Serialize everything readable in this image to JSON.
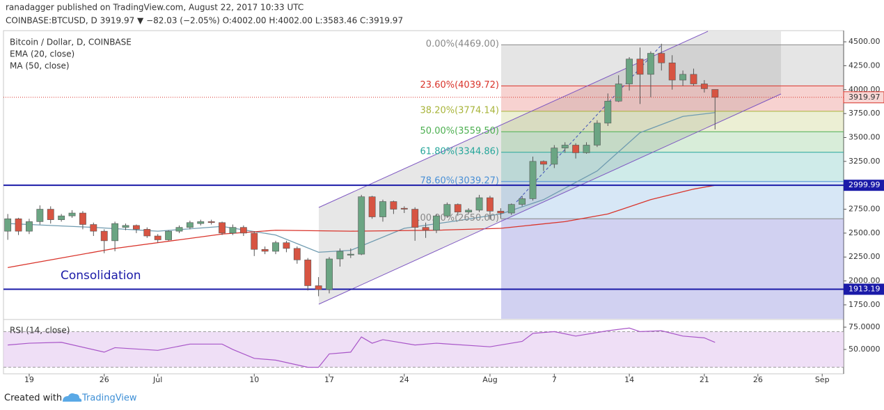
{
  "header": {
    "line1": "ranadagger published on TradingView.com, August 22, 2017 10:33 UTC",
    "line2": "COINBASE:BTCUSD, D 3919.97 ▼ −82.03 (−2.05%) O:4002.00 H:4002.00 L:3583.46 C:3919.97"
  },
  "footer": {
    "created": "Created with",
    "brand": "TradingView"
  },
  "chart_data": {
    "type": "candlestick",
    "title": "Bitcoin / Dollar, D, COINBASE",
    "annotation": "Consolidation",
    "up_color": "#6ba583",
    "down_color": "#d75442",
    "ylim": [
      1604,
      4617
    ],
    "yticks": [
      {
        "value": 1750,
        "label": "1750.00"
      },
      {
        "value": 2000,
        "label": "2000.00"
      },
      {
        "value": 2250,
        "label": "2250.00"
      },
      {
        "value": 2500,
        "label": "2500.00"
      },
      {
        "value": 2750,
        "label": "2750.00"
      },
      {
        "value": 3000,
        "label": "3000.00"
      },
      {
        "value": 3250,
        "label": "3250.00"
      },
      {
        "value": 3500,
        "label": "3500.00"
      },
      {
        "value": 3750,
        "label": "3750.00"
      },
      {
        "value": 4000,
        "label": "4000.00"
      },
      {
        "value": 4250,
        "label": "4250.00"
      },
      {
        "value": 4500,
        "label": "4500.00"
      }
    ],
    "xlim": [
      -0.4,
      78
    ],
    "xticks": [
      {
        "value": 2,
        "label": "19"
      },
      {
        "value": 9,
        "label": "26"
      },
      {
        "value": 14,
        "label": "Jul"
      },
      {
        "value": 23,
        "label": "10"
      },
      {
        "value": 30,
        "label": "17"
      },
      {
        "value": 37,
        "label": "24"
      },
      {
        "value": 45,
        "label": "Aug"
      },
      {
        "value": 51,
        "label": "7"
      },
      {
        "value": 58,
        "label": "14"
      },
      {
        "value": 65,
        "label": "21"
      },
      {
        "value": 70,
        "label": "26"
      },
      {
        "value": 76,
        "label": "Sep"
      }
    ],
    "candles": {
      "x": [
        0,
        1,
        2,
        3,
        4,
        5,
        6,
        7,
        8,
        9,
        10,
        11,
        12,
        13,
        14,
        15,
        16,
        17,
        18,
        19,
        20,
        21,
        22,
        23,
        24,
        25,
        26,
        27,
        28,
        29,
        30,
        31,
        32,
        33,
        34,
        35,
        36,
        37,
        38,
        39,
        40,
        41,
        42,
        43,
        44,
        45,
        46,
        47,
        48,
        49,
        50,
        51,
        52,
        53,
        54,
        55,
        56,
        57,
        58,
        59,
        60,
        61,
        62,
        63,
        64,
        65,
        66
      ],
      "open": [
        2520,
        2650,
        2520,
        2620,
        2750,
        2640,
        2680,
        2710,
        2590,
        2520,
        2420,
        2560,
        2580,
        2540,
        2470,
        2430,
        2520,
        2560,
        2600,
        2620,
        2610,
        2500,
        2560,
        2500,
        2330,
        2310,
        2400,
        2340,
        2220,
        1950,
        1910,
        2230,
        2270,
        2280,
        2880,
        2670,
        2830,
        2760,
        2750,
        2560,
        2530,
        2680,
        2800,
        2720,
        2740,
        2870,
        2730,
        2710,
        2800,
        2860,
        3250,
        3220,
        3390,
        3420,
        3340,
        3420,
        3650,
        3880,
        4060,
        4320,
        4160,
        4380,
        4280,
        4100,
        4160,
        4060,
        4002
      ],
      "high": [
        2700,
        2660,
        2650,
        2790,
        2780,
        2700,
        2740,
        2730,
        2610,
        2540,
        2620,
        2600,
        2590,
        2560,
        2490,
        2530,
        2580,
        2630,
        2640,
        2640,
        2620,
        2590,
        2580,
        2520,
        2360,
        2420,
        2420,
        2360,
        2240,
        2040,
        2250,
        2340,
        2340,
        2900,
        2890,
        2850,
        2840,
        2780,
        2770,
        2610,
        2700,
        2820,
        2810,
        2760,
        2900,
        2890,
        2760,
        2810,
        2890,
        3300,
        3260,
        3420,
        3450,
        3440,
        3450,
        3680,
        3960,
        4150,
        4340,
        4440,
        4400,
        4480,
        4360,
        4200,
        4220,
        4100,
        4002
      ],
      "low": [
        2430,
        2480,
        2490,
        2590,
        2600,
        2620,
        2660,
        2540,
        2470,
        2290,
        2310,
        2530,
        2500,
        2450,
        2400,
        2420,
        2500,
        2540,
        2580,
        2590,
        2480,
        2480,
        2470,
        2260,
        2280,
        2280,
        2300,
        2180,
        1900,
        1840,
        1870,
        2150,
        2240,
        2270,
        2650,
        2620,
        2700,
        2710,
        2420,
        2450,
        2500,
        2660,
        2680,
        2700,
        2720,
        2640,
        2650,
        2690,
        2780,
        2840,
        3150,
        3180,
        3340,
        3280,
        3330,
        3400,
        3620,
        3870,
        3990,
        3850,
        3920,
        4200,
        4000,
        4040,
        4040,
        3970,
        3583.46
      ],
      "close": [
        2650,
        2520,
        2620,
        2750,
        2640,
        2680,
        2710,
        2590,
        2520,
        2420,
        2600,
        2580,
        2540,
        2470,
        2430,
        2520,
        2560,
        2610,
        2620,
        2610,
        2500,
        2560,
        2500,
        2330,
        2310,
        2400,
        2340,
        2220,
        1950,
        1910,
        2230,
        2310,
        2280,
        2880,
        2670,
        2830,
        2750,
        2750,
        2560,
        2530,
        2680,
        2800,
        2720,
        2740,
        2870,
        2730,
        2710,
        2800,
        2860,
        3250,
        3220,
        3390,
        3420,
        3340,
        3420,
        3650,
        3880,
        4060,
        4320,
        4160,
        4380,
        4280,
        4100,
        4160,
        4060,
        4010,
        3919.97
      ]
    },
    "series": [
      {
        "name": "EMA (20, close)",
        "color": "#6f9bb0",
        "x": [
          0,
          8,
          14,
          20,
          25,
          29,
          32,
          37,
          42,
          46,
          50,
          55,
          59,
          63,
          66
        ],
        "values": [
          2600,
          2560,
          2520,
          2570,
          2480,
          2300,
          2320,
          2550,
          2630,
          2700,
          2850,
          3150,
          3550,
          3720,
          3760
        ]
      },
      {
        "name": "MA (50, close)",
        "color": "#d9342b",
        "x": [
          0,
          10,
          20,
          25,
          32,
          40,
          46,
          52,
          56,
          60,
          64,
          66
        ],
        "values": [
          2140,
          2340,
          2490,
          2530,
          2520,
          2530,
          2550,
          2620,
          2700,
          2850,
          2960,
          3000
        ]
      }
    ],
    "hlines": [
      {
        "value": 2999.99,
        "color": "#1a1aa8"
      },
      {
        "value": 1913.19,
        "color": "#1a1aa8"
      }
    ],
    "last_price": {
      "value": 3919.97,
      "color": "#d9342b"
    },
    "fib": {
      "below_color": "#7b7bd6",
      "levels": [
        {
          "value": 4469,
          "label": "0.00%(4469.00)",
          "color": "#888888"
        },
        {
          "value": 4039.72,
          "label": "23.60%(4039.72)",
          "color": "#d9342b"
        },
        {
          "value": 3774.14,
          "label": "38.20%(3774.14)",
          "color": "#a8b43a"
        },
        {
          "value": 3559.5,
          "label": "50.00%(3559.50)",
          "color": "#4caf50"
        },
        {
          "value": 3344.86,
          "label": "61.80%(3344.86)",
          "color": "#26a69a"
        },
        {
          "value": 3039.27,
          "label": "78.60%(3039.27)",
          "color": "#4a90d6"
        },
        {
          "value": 2650,
          "label": "100.00%(2650.00)",
          "color": "#888888"
        }
      ]
    },
    "rsi": {
      "name": "RSI (14, close)",
      "color": "#a855c8",
      "ylim": [
        22.7,
        82.8
      ],
      "band": [
        30,
        70
      ],
      "yticks": [
        {
          "value": 75,
          "label": "75.0000"
        },
        {
          "value": 50,
          "label": "50.0000"
        }
      ],
      "x": [
        0,
        2,
        5,
        9,
        10,
        14,
        17,
        20,
        21,
        23,
        25,
        28,
        29,
        30,
        32,
        33,
        34,
        35,
        38,
        40,
        45,
        48,
        49,
        51,
        53,
        56,
        58,
        59,
        61,
        63,
        65,
        66
      ],
      "values": [
        55,
        57,
        58,
        47,
        52,
        49,
        56,
        56,
        50,
        40,
        38,
        30,
        30,
        45,
        47,
        64,
        57,
        61,
        55,
        57,
        53,
        59,
        68,
        70,
        65,
        71,
        74,
        70,
        71,
        65,
        63,
        58
      ]
    }
  }
}
